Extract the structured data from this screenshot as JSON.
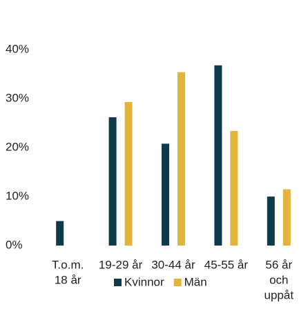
{
  "chart_data": {
    "type": "bar",
    "categories": [
      [
        "T.o.m.",
        "18 år"
      ],
      [
        "19-29 år"
      ],
      [
        "30-44 år"
      ],
      [
        "45-55 år"
      ],
      [
        "56 år",
        "och",
        "uppåt"
      ]
    ],
    "series": [
      {
        "name": "Kvinnor",
        "color": "#0e3a4c",
        "values": [
          5,
          26.2,
          20.8,
          36.8,
          10
        ]
      },
      {
        "name": "Män",
        "color": "#e2b43c",
        "values": [
          0,
          29.3,
          35.4,
          23.4,
          11.5
        ]
      }
    ],
    "ylim": [
      0,
      40
    ],
    "yticks": [
      {
        "value": 0,
        "label": "0%"
      },
      {
        "value": 10,
        "label": "10%"
      },
      {
        "value": 20,
        "label": "20%"
      },
      {
        "value": 30,
        "label": "30%"
      },
      {
        "value": 40,
        "label": "40%"
      }
    ],
    "grid": false,
    "legend": "bottom"
  }
}
